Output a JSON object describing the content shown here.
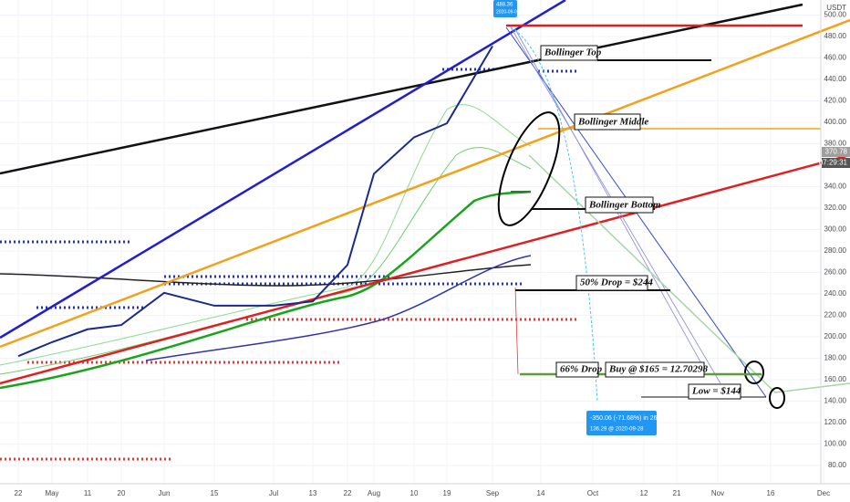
{
  "chart_data": {
    "type": "line",
    "categories": [
      "22",
      "May",
      "11",
      "20",
      "Jun",
      "15",
      "Jul",
      "13",
      "22",
      "Aug",
      "10",
      "19",
      "Sep",
      "14",
      "Oct",
      "12",
      "21",
      "Nov",
      "16",
      "Dec"
    ],
    "series": [
      {
        "color": "#1a2a8c",
        "values": [
          182,
          195,
          207,
          211,
          241,
          229,
          229,
          233,
          267,
          352,
          386,
          399,
          471,
          null,
          null,
          null,
          null,
          null,
          null,
          null
        ]
      }
    ],
    "ylim": [
      63,
      514
    ],
    "yticks": [
      {
        "value": 80,
        "label": "80.00"
      },
      {
        "value": 100,
        "label": "100.00"
      },
      {
        "value": 120,
        "label": "120.00"
      },
      {
        "value": 140,
        "label": "140.00"
      },
      {
        "value": 160,
        "label": "160.00"
      },
      {
        "value": 180,
        "label": "180.00"
      },
      {
        "value": 200,
        "label": "200.00"
      },
      {
        "value": 220,
        "label": "220.00"
      },
      {
        "value": 240,
        "label": "240.00"
      },
      {
        "value": 260,
        "label": "260.00"
      },
      {
        "value": 280,
        "label": "280.00"
      },
      {
        "value": 300,
        "label": "300.00"
      },
      {
        "value": 320,
        "label": "320.00"
      },
      {
        "value": 340,
        "label": "340.00"
      },
      {
        "value": 360,
        "label": "360.00"
      },
      {
        "value": 380,
        "label": "380.00"
      },
      {
        "value": 400,
        "label": "400.00"
      },
      {
        "value": 420,
        "label": "420.00"
      },
      {
        "value": 440,
        "label": "440.00"
      },
      {
        "value": 460,
        "label": "460.00"
      },
      {
        "value": 480,
        "label": "480.00"
      },
      {
        "value": 500,
        "label": "500.00"
      }
    ],
    "grid": true,
    "axis_unit": "USDT",
    "last_price": "370.78",
    "countdown": "07:29:31",
    "annotations": [
      "Bollinger Top",
      "Bollinger Middle",
      "Bollinger Bottom",
      "50% Drop = $244",
      "66% Drop",
      "Buy @ $165 = 12.70298",
      "Low = $144"
    ],
    "measure": [
      "-350.06 (-71.68%) in 26d",
      "136.29 @ 2020-09-28"
    ],
    "high_label": [
      "488.36",
      "2020-09-01"
    ]
  }
}
